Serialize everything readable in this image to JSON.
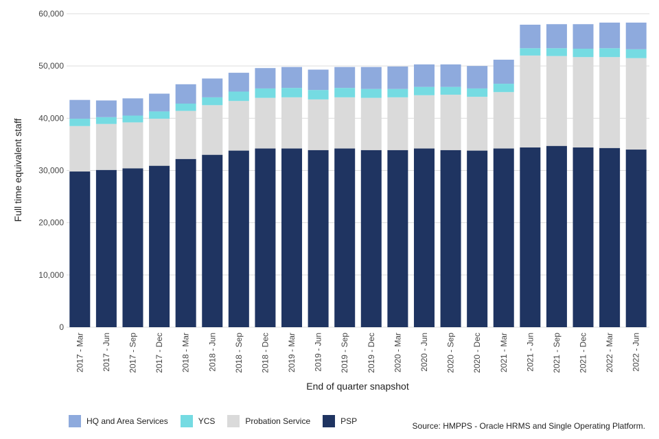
{
  "chart_data": {
    "type": "bar",
    "stacked": true,
    "title": "",
    "xlabel": "End of quarter snapshot",
    "ylabel": "Full time equivalent staff",
    "ylim": [
      0,
      60000
    ],
    "yticks": [
      0,
      10000,
      20000,
      30000,
      40000,
      50000,
      60000
    ],
    "ytick_labels": [
      "0",
      "10,000",
      "20,000",
      "30,000",
      "40,000",
      "50,000",
      "60,000"
    ],
    "grid": true,
    "legend_position": "bottom-left",
    "categories": [
      "2017 - Mar",
      "2017 - Jun",
      "2017 - Sep",
      "2017 - Dec",
      "2018 - Mar",
      "2018 - Jun",
      "2018 - Sep",
      "2018 - Dec",
      "2019 - Mar",
      "2019 - Jun",
      "2019 - Sep",
      "2019 - Dec",
      "2020 - Mar",
      "2020 - Jun",
      "2020 - Sep",
      "2020 - Dec",
      "2021 - Mar",
      "2021 - Jun",
      "2021 - Sep",
      "2021 - Dec",
      "2022 - Mar",
      "2022 - Jun"
    ],
    "series": [
      {
        "name": "PSP",
        "color": "#1f3461",
        "values": [
          29800,
          30100,
          30400,
          30900,
          32200,
          33000,
          33800,
          34200,
          34200,
          33900,
          34200,
          33900,
          33900,
          34200,
          33900,
          33800,
          34200,
          34400,
          34700,
          34400,
          34300,
          34000
        ]
      },
      {
        "name": "Probation Service",
        "color": "#dadada",
        "values": [
          8700,
          8800,
          8800,
          9000,
          9200,
          9500,
          9500,
          9700,
          9800,
          9700,
          9800,
          10000,
          10100,
          10200,
          10600,
          10300,
          10800,
          17600,
          17200,
          17300,
          17400,
          17500
        ]
      },
      {
        "name": "YCS",
        "color": "#75dbe2",
        "values": [
          1400,
          1300,
          1300,
          1400,
          1400,
          1500,
          1800,
          1800,
          1800,
          1800,
          1800,
          1700,
          1600,
          1600,
          1500,
          1600,
          1600,
          1400,
          1500,
          1600,
          1700,
          1700
        ]
      },
      {
        "name": "HQ and Area Services",
        "color": "#8eaadd",
        "values": [
          3600,
          3200,
          3300,
          3400,
          3700,
          3600,
          3600,
          3900,
          4000,
          3900,
          4000,
          4200,
          4300,
          4300,
          4300,
          4300,
          4600,
          4500,
          4600,
          4700,
          4900,
          5100
        ]
      }
    ],
    "legend_order": [
      "HQ and Area Services",
      "YCS",
      "Probation Service",
      "PSP"
    ]
  },
  "source": "Source: HMPPS - Oracle HRMS and Single Operating Platform."
}
